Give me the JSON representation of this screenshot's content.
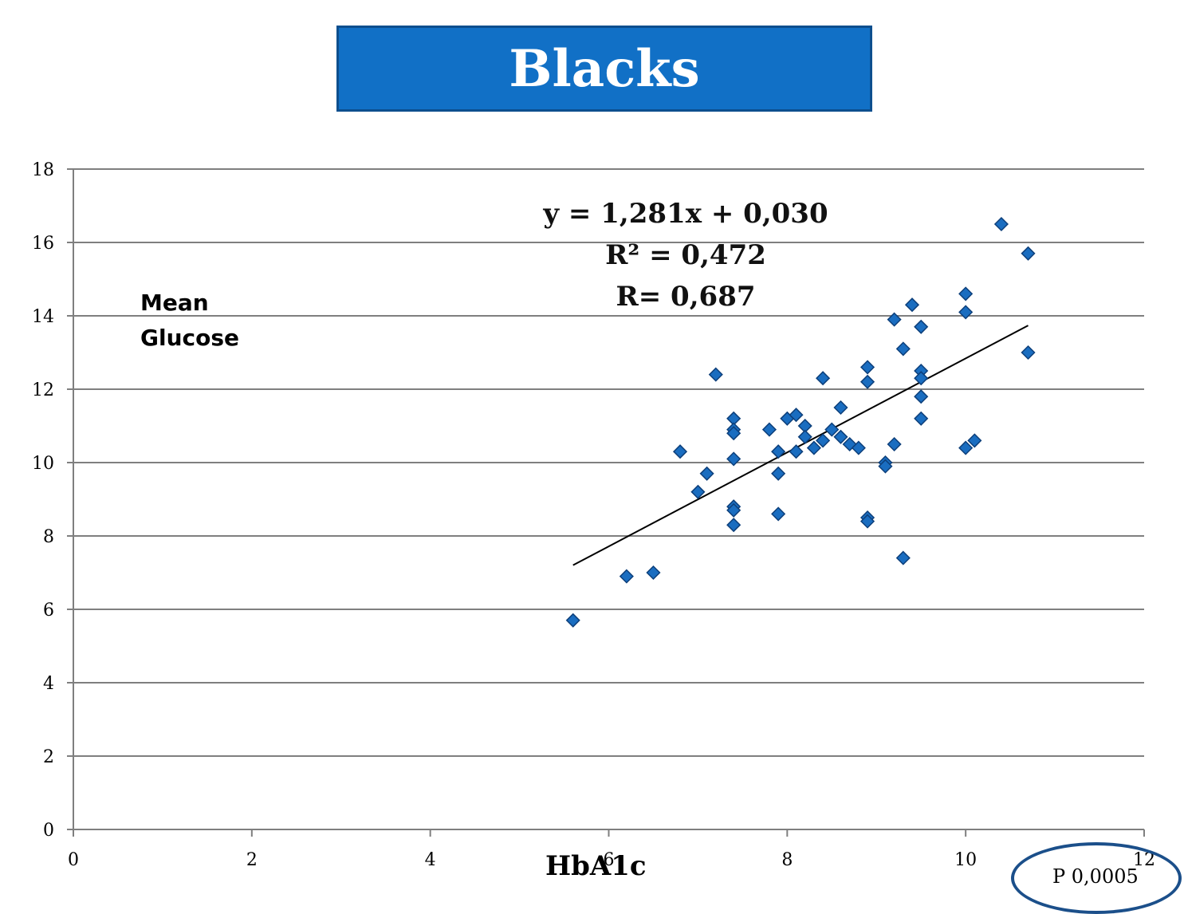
{
  "header": {
    "title": "Blacks"
  },
  "annotation": {
    "equation": "y = 1,281x + 0,030",
    "r2": "R² = 0,472",
    "r": "R= 0,687",
    "p_value": "P 0,0005"
  },
  "chart_data": {
    "type": "scatter",
    "title": "Blacks",
    "xlabel": "HbA1c",
    "ylabel": [
      "Mean",
      "Glucose"
    ],
    "xlim": [
      0,
      12
    ],
    "ylim": [
      0,
      18
    ],
    "xticks": [
      0,
      2,
      4,
      6,
      8,
      10,
      12
    ],
    "yticks": [
      0,
      2,
      4,
      6,
      8,
      10,
      12,
      14,
      16,
      18
    ],
    "tick_labels_x": [
      "0",
      "2",
      "4",
      "6",
      "8",
      "10",
      "12"
    ],
    "tick_labels_y": [
      "0",
      "2",
      "4",
      "6",
      "8",
      "10",
      "12",
      "14",
      "16",
      "18"
    ],
    "grid": "horizontal",
    "marker_color": "#1a6dc0",
    "marker_edge": "#0d3f7a",
    "series": [
      {
        "points": [
          [
            5.6,
            5.7
          ],
          [
            6.2,
            6.9
          ],
          [
            6.5,
            7.0
          ],
          [
            6.8,
            10.3
          ],
          [
            7.0,
            9.2
          ],
          [
            7.1,
            9.7
          ],
          [
            7.2,
            12.4
          ],
          [
            7.4,
            11.2
          ],
          [
            7.4,
            10.9
          ],
          [
            7.4,
            10.8
          ],
          [
            7.4,
            10.1
          ],
          [
            7.4,
            8.8
          ],
          [
            7.4,
            8.7
          ],
          [
            7.4,
            8.3
          ],
          [
            7.8,
            10.9
          ],
          [
            7.9,
            10.3
          ],
          [
            7.9,
            9.7
          ],
          [
            7.9,
            8.6
          ],
          [
            8.0,
            11.2
          ],
          [
            8.1,
            11.3
          ],
          [
            8.1,
            10.3
          ],
          [
            8.2,
            11.0
          ],
          [
            8.2,
            10.7
          ],
          [
            8.3,
            10.4
          ],
          [
            8.4,
            12.3
          ],
          [
            8.4,
            10.6
          ],
          [
            8.5,
            10.9
          ],
          [
            8.6,
            11.5
          ],
          [
            8.6,
            10.7
          ],
          [
            8.7,
            10.5
          ],
          [
            8.8,
            10.4
          ],
          [
            8.9,
            12.6
          ],
          [
            8.9,
            12.2
          ],
          [
            8.9,
            8.5
          ],
          [
            8.9,
            8.4
          ],
          [
            9.1,
            10.0
          ],
          [
            9.1,
            9.9
          ],
          [
            9.2,
            13.9
          ],
          [
            9.2,
            10.5
          ],
          [
            9.3,
            13.1
          ],
          [
            9.3,
            7.4
          ],
          [
            9.4,
            14.3
          ],
          [
            9.5,
            13.7
          ],
          [
            9.5,
            12.5
          ],
          [
            9.5,
            12.3
          ],
          [
            9.5,
            11.8
          ],
          [
            9.5,
            11.2
          ],
          [
            10.0,
            14.6
          ],
          [
            10.0,
            14.1
          ],
          [
            10.0,
            10.4
          ],
          [
            10.1,
            10.6
          ],
          [
            10.4,
            16.5
          ],
          [
            10.7,
            15.7
          ],
          [
            10.7,
            13.0
          ]
        ]
      }
    ],
    "trendline": {
      "slope": 1.281,
      "intercept": 0.03,
      "x_range": [
        5.6,
        10.7
      ]
    }
  }
}
